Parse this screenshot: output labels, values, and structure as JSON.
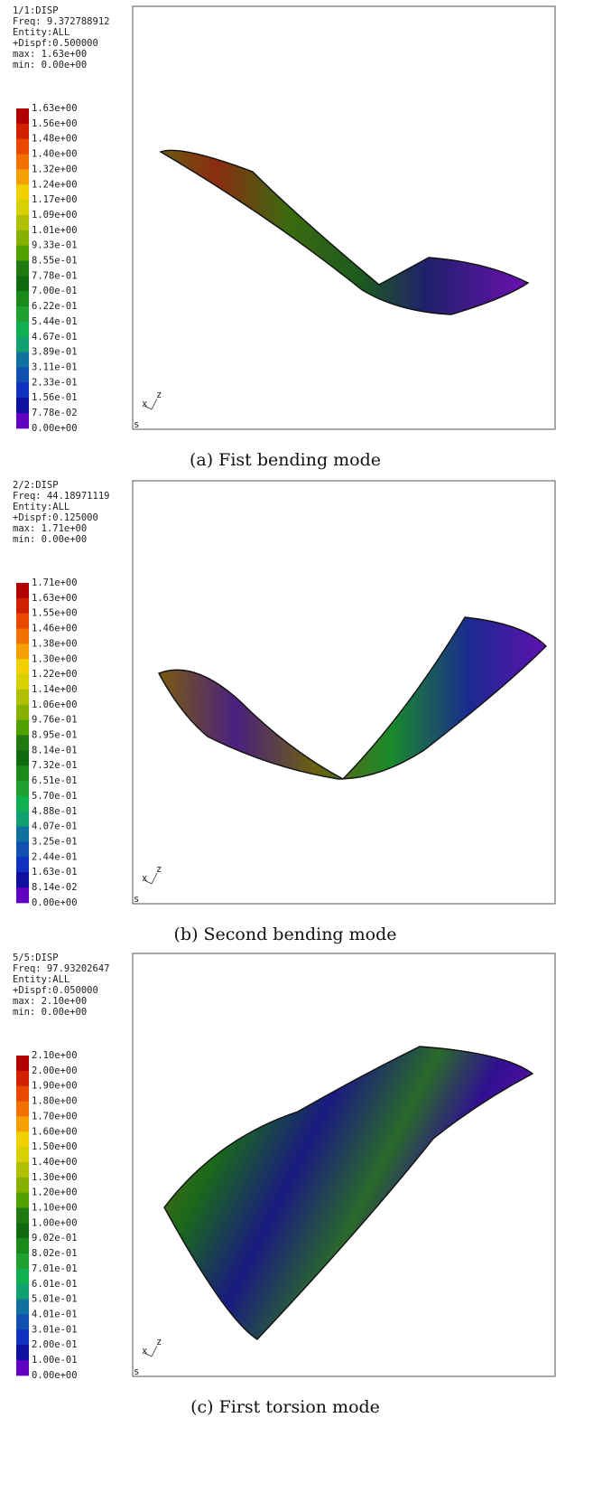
{
  "panels": [
    {
      "header": [
        "1/1:DISP",
        "Freq: 9.372788912",
        "Entity:ALL",
        "+Dispf:0.500000",
        "max: 1.63e+00",
        "min: 0.00e+00"
      ],
      "legend": [
        "1.63e+00",
        "1.56e+00",
        "1.48e+00",
        "1.40e+00",
        "1.32e+00",
        "1.24e+00",
        "1.17e+00",
        "1.09e+00",
        "1.01e+00",
        "9.33e-01",
        "8.55e-01",
        "7.78e-01",
        "7.00e-01",
        "6.22e-01",
        "5.44e-01",
        "4.67e-01",
        "3.89e-01",
        "3.11e-01",
        "2.33e-01",
        "1.56e-01",
        "7.78e-02",
        "0.00e+00"
      ],
      "triad": [
        "x",
        "z"
      ],
      "corner": "s",
      "caption": "(a) Fist bending mode"
    },
    {
      "header": [
        "2/2:DISP",
        "Freq: 44.18971119",
        "Entity:ALL",
        "+Dispf:0.125000",
        "max: 1.71e+00",
        "min: 0.00e+00"
      ],
      "legend": [
        "1.71e+00",
        "1.63e+00",
        "1.55e+00",
        "1.46e+00",
        "1.38e+00",
        "1.30e+00",
        "1.22e+00",
        "1.14e+00",
        "1.06e+00",
        "9.76e-01",
        "8.95e-01",
        "8.14e-01",
        "7.32e-01",
        "6.51e-01",
        "5.70e-01",
        "4.88e-01",
        "4.07e-01",
        "3.25e-01",
        "2.44e-01",
        "1.63e-01",
        "8.14e-02",
        "0.00e+00"
      ],
      "triad": [
        "x",
        "z"
      ],
      "corner": "s",
      "caption": "(b) Second bending mode"
    },
    {
      "header": [
        "5/5:DISP",
        "Freq: 97.93202647",
        "Entity:ALL",
        "+Dispf:0.050000",
        "max: 2.10e+00",
        "min: 0.00e+00"
      ],
      "legend": [
        "2.10e+00",
        "2.00e+00",
        "1.90e+00",
        "1.80e+00",
        "1.70e+00",
        "1.60e+00",
        "1.50e+00",
        "1.40e+00",
        "1.30e+00",
        "1.20e+00",
        "1.10e+00",
        "1.00e+00",
        "9.02e-01",
        "8.02e-01",
        "7.01e-01",
        "6.01e-01",
        "5.01e-01",
        "4.01e-01",
        "3.01e-01",
        "2.00e-01",
        "1.00e-01",
        "0.00e+00"
      ],
      "triad": [
        "x",
        "z"
      ],
      "corner": "s",
      "caption": "(c) First torsion mode"
    }
  ]
}
